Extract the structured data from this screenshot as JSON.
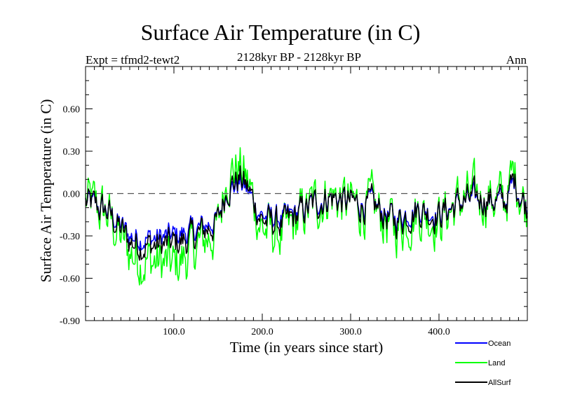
{
  "chart_data": {
    "type": "line",
    "title": "Surface Air Temperature (in C)",
    "subtitle_left": "Expt = tfmd2-tewt2",
    "subtitle_center": "2128kyr BP - 2128kyr BP",
    "subtitle_right": "Ann",
    "xlabel": "Time (in years since start)",
    "ylabel": "Surface Air Temperature (in C)",
    "xlim": [
      0,
      500
    ],
    "ylim": [
      -0.9,
      0.9
    ],
    "xticks": [
      100,
      200,
      300,
      400
    ],
    "xtick_labels": [
      "100.0",
      "200.0",
      "300.0",
      "400.0"
    ],
    "yticks": [
      0.6,
      0.3,
      0.0,
      -0.3,
      -0.6,
      -0.9
    ],
    "ytick_labels": [
      "0.60",
      "0.30",
      "0.00",
      "-0.30",
      "-0.60",
      "-0.90"
    ],
    "zero_line": "dashed",
    "grid": false,
    "legend_position": "bottom-right",
    "x": [
      0,
      25,
      50,
      75,
      100,
      125,
      150,
      160,
      175,
      185,
      200,
      225,
      250,
      275,
      300,
      325,
      350,
      375,
      400,
      425,
      450,
      475,
      485,
      500
    ],
    "series": [
      {
        "name": "Land",
        "color": "#00ff00",
        "values": [
          -0.05,
          -0.15,
          -0.42,
          -0.48,
          -0.52,
          -0.38,
          -0.25,
          0.15,
          0.18,
          0.05,
          -0.25,
          -0.3,
          -0.12,
          0.0,
          -0.08,
          -0.1,
          -0.25,
          -0.12,
          -0.18,
          -0.05,
          -0.02,
          -0.05,
          0.15,
          -0.12
        ]
      },
      {
        "name": "Ocean",
        "color": "#0000ff",
        "values": [
          -0.06,
          -0.12,
          -0.3,
          -0.32,
          -0.3,
          -0.26,
          -0.18,
          0.02,
          0.08,
          0.0,
          -0.16,
          -0.18,
          -0.1,
          -0.02,
          -0.06,
          -0.08,
          -0.18,
          -0.1,
          -0.14,
          -0.06,
          -0.04,
          -0.06,
          0.08,
          -0.1
        ]
      },
      {
        "name": "AllSurf",
        "color": "#000000",
        "values": [
          -0.06,
          -0.13,
          -0.34,
          -0.37,
          -0.36,
          -0.3,
          -0.2,
          0.05,
          0.11,
          0.02,
          -0.19,
          -0.22,
          -0.11,
          -0.02,
          -0.07,
          -0.09,
          -0.2,
          -0.11,
          -0.15,
          -0.06,
          -0.03,
          -0.06,
          0.1,
          -0.11
        ]
      }
    ]
  }
}
